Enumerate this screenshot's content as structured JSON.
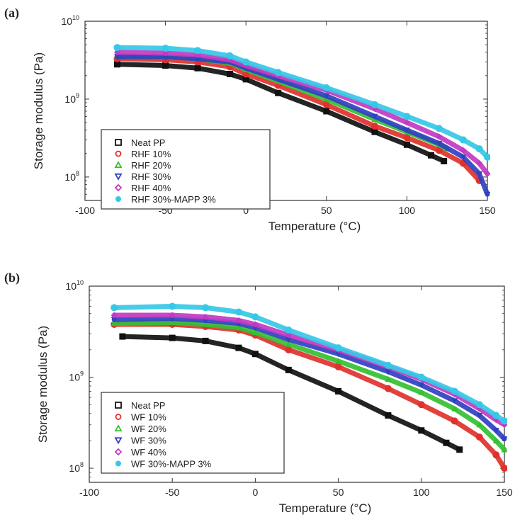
{
  "chart_data": [
    {
      "type": "line",
      "panel_label": "(a)",
      "xlabel": "Temperature (°C)",
      "ylabel": "Storage modulus (Pa)",
      "xlim": [
        -100,
        150
      ],
      "ylim": [
        50000000.0,
        10000000000.0
      ],
      "y_scale": "log",
      "x_ticks": [
        -100,
        -50,
        0,
        50,
        100,
        150
      ],
      "x_tick_labels": [
        "-100",
        "-50",
        "0",
        "50",
        "100",
        "150"
      ],
      "y_ticks": [
        100000000.0,
        1000000000.0,
        10000000000.0
      ],
      "y_tick_labels": [
        {
          "base": "10",
          "exp": "8"
        },
        {
          "base": "10",
          "exp": "9"
        },
        {
          "base": "10",
          "exp": "10"
        }
      ],
      "legend_position": "bottom-left",
      "series": [
        {
          "name": "Neat PP",
          "color": "#111111",
          "marker": "square",
          "points": [
            [
              -80,
              2800000000.0
            ],
            [
              -50,
              2700000000.0
            ],
            [
              -30,
              2500000000.0
            ],
            [
              -10,
              2100000000.0
            ],
            [
              0,
              1800000000.0
            ],
            [
              20,
              1200000000.0
            ],
            [
              50,
              700000000.0
            ],
            [
              80,
              380000000.0
            ],
            [
              100,
              260000000.0
            ],
            [
              115,
              190000000.0
            ],
            [
              123,
              160000000.0
            ]
          ]
        },
        {
          "name": "RHF 10%",
          "color": "#e0322d",
          "marker": "circle",
          "points": [
            [
              -80,
              3300000000.0
            ],
            [
              -50,
              3200000000.0
            ],
            [
              -30,
              3000000000.0
            ],
            [
              -10,
              2600000000.0
            ],
            [
              0,
              2100000000.0
            ],
            [
              20,
              1500000000.0
            ],
            [
              50,
              850000000.0
            ],
            [
              80,
              450000000.0
            ],
            [
              100,
              320000000.0
            ],
            [
              120,
              220000000.0
            ],
            [
              135,
              150000000.0
            ],
            [
              145,
              90000000.0
            ]
          ]
        },
        {
          "name": "RHF 20%",
          "color": "#33c033",
          "marker": "triangle-up",
          "points": [
            [
              -80,
              3600000000.0
            ],
            [
              -50,
              3500000000.0
            ],
            [
              -30,
              3300000000.0
            ],
            [
              -10,
              2900000000.0
            ],
            [
              0,
              2400000000.0
            ],
            [
              20,
              1700000000.0
            ],
            [
              50,
              1000000000.0
            ],
            [
              80,
              550000000.0
            ],
            [
              100,
              380000000.0
            ],
            [
              120,
              260000000.0
            ],
            [
              125,
              230000000.0
            ]
          ]
        },
        {
          "name": "RHF 30%",
          "color": "#3040c0",
          "marker": "triangle-down",
          "points": [
            [
              -80,
              3500000000.0
            ],
            [
              -50,
              3500000000.0
            ],
            [
              -30,
              3300000000.0
            ],
            [
              -10,
              3000000000.0
            ],
            [
              0,
              2500000000.0
            ],
            [
              20,
              1800000000.0
            ],
            [
              50,
              1100000000.0
            ],
            [
              80,
              600000000.0
            ],
            [
              100,
              400000000.0
            ],
            [
              120,
              270000000.0
            ],
            [
              135,
              180000000.0
            ],
            [
              145,
              110000000.0
            ],
            [
              150,
              60000000.0
            ]
          ]
        },
        {
          "name": "RHF 40%",
          "color": "#c23ac2",
          "marker": "diamond",
          "points": [
            [
              -80,
              4000000000.0
            ],
            [
              -50,
              3900000000.0
            ],
            [
              -30,
              3700000000.0
            ],
            [
              -10,
              3200000000.0
            ],
            [
              0,
              2700000000.0
            ],
            [
              20,
              2000000000.0
            ],
            [
              50,
              1300000000.0
            ],
            [
              80,
              750000000.0
            ],
            [
              100,
              500000000.0
            ],
            [
              120,
              330000000.0
            ],
            [
              135,
              220000000.0
            ],
            [
              145,
              150000000.0
            ],
            [
              150,
              110000000.0
            ]
          ]
        },
        {
          "name": "RHF 30%-MAPP 3%",
          "color": "#36c8e6",
          "marker": "star",
          "points": [
            [
              -80,
              4600000000.0
            ],
            [
              -50,
              4500000000.0
            ],
            [
              -30,
              4200000000.0
            ],
            [
              -10,
              3600000000.0
            ],
            [
              0,
              3000000000.0
            ],
            [
              20,
              2200000000.0
            ],
            [
              50,
              1400000000.0
            ],
            [
              80,
              850000000.0
            ],
            [
              100,
              600000000.0
            ],
            [
              120,
              420000000.0
            ],
            [
              135,
              300000000.0
            ],
            [
              145,
              230000000.0
            ],
            [
              150,
              180000000.0
            ]
          ]
        }
      ]
    },
    {
      "type": "line",
      "panel_label": "(b)",
      "xlabel": "Temperature (°C)",
      "ylabel": "Storage modulus (Pa)",
      "xlim": [
        -100,
        150
      ],
      "ylim": [
        70000000.0,
        10000000000.0
      ],
      "y_scale": "log",
      "x_ticks": [
        -100,
        -50,
        0,
        50,
        100,
        150
      ],
      "x_tick_labels": [
        "-100",
        "-50",
        "0",
        "50",
        "100",
        "150"
      ],
      "y_ticks": [
        100000000.0,
        1000000000.0,
        10000000000.0
      ],
      "y_tick_labels": [
        {
          "base": "10",
          "exp": "8"
        },
        {
          "base": "10",
          "exp": "9"
        },
        {
          "base": "10",
          "exp": "10"
        }
      ],
      "legend_position": "bottom-left",
      "series": [
        {
          "name": "Neat PP",
          "color": "#111111",
          "marker": "square",
          "points": [
            [
              -80,
              2800000000.0
            ],
            [
              -50,
              2700000000.0
            ],
            [
              -30,
              2500000000.0
            ],
            [
              -10,
              2100000000.0
            ],
            [
              0,
              1800000000.0
            ],
            [
              20,
              1200000000.0
            ],
            [
              50,
              700000000.0
            ],
            [
              80,
              380000000.0
            ],
            [
              100,
              260000000.0
            ],
            [
              115,
              190000000.0
            ],
            [
              123,
              160000000.0
            ]
          ]
        },
        {
          "name": "WF 10%",
          "color": "#e0322d",
          "marker": "circle",
          "points": [
            [
              -85,
              3800000000.0
            ],
            [
              -50,
              3800000000.0
            ],
            [
              -30,
              3600000000.0
            ],
            [
              -10,
              3300000000.0
            ],
            [
              0,
              2900000000.0
            ],
            [
              20,
              2000000000.0
            ],
            [
              50,
              1300000000.0
            ],
            [
              80,
              750000000.0
            ],
            [
              100,
              500000000.0
            ],
            [
              120,
              330000000.0
            ],
            [
              135,
              220000000.0
            ],
            [
              145,
              140000000.0
            ],
            [
              150,
              100000000.0
            ]
          ]
        },
        {
          "name": "WF 20%",
          "color": "#33c033",
          "marker": "triangle-up",
          "points": [
            [
              -85,
              3900000000.0
            ],
            [
              -50,
              4000000000.0
            ],
            [
              -30,
              3800000000.0
            ],
            [
              -10,
              3500000000.0
            ],
            [
              0,
              3100000000.0
            ],
            [
              20,
              2300000000.0
            ],
            [
              50,
              1500000000.0
            ],
            [
              80,
              950000000.0
            ],
            [
              100,
              680000000.0
            ],
            [
              120,
              450000000.0
            ],
            [
              135,
              300000000.0
            ],
            [
              145,
              200000000.0
            ],
            [
              150,
              160000000.0
            ]
          ]
        },
        {
          "name": "WF 30%",
          "color": "#3040c0",
          "marker": "triangle-down",
          "points": [
            [
              -85,
              4300000000.0
            ],
            [
              -50,
              4400000000.0
            ],
            [
              -30,
              4200000000.0
            ],
            [
              -10,
              3900000000.0
            ],
            [
              0,
              3500000000.0
            ],
            [
              20,
              2600000000.0
            ],
            [
              50,
              1800000000.0
            ],
            [
              80,
              1150000000.0
            ],
            [
              100,
              820000000.0
            ],
            [
              120,
              550000000.0
            ],
            [
              135,
              380000000.0
            ],
            [
              145,
              260000000.0
            ],
            [
              150,
              210000000.0
            ]
          ]
        },
        {
          "name": "WF 40%",
          "color": "#c23ac2",
          "marker": "diamond",
          "points": [
            [
              -85,
              4800000000.0
            ],
            [
              -50,
              4800000000.0
            ],
            [
              -30,
              4600000000.0
            ],
            [
              -10,
              4200000000.0
            ],
            [
              0,
              3800000000.0
            ],
            [
              20,
              2900000000.0
            ],
            [
              50,
              2000000000.0
            ],
            [
              80,
              1300000000.0
            ],
            [
              100,
              950000000.0
            ],
            [
              120,
              650000000.0
            ],
            [
              135,
              450000000.0
            ],
            [
              145,
              340000000.0
            ],
            [
              150,
              300000000.0
            ]
          ]
        },
        {
          "name": "WF 30%-MAPP 3%",
          "color": "#36c8e6",
          "marker": "star",
          "points": [
            [
              -85,
              5800000000.0
            ],
            [
              -50,
              6000000000.0
            ],
            [
              -30,
              5800000000.0
            ],
            [
              -10,
              5200000000.0
            ],
            [
              0,
              4600000000.0
            ],
            [
              20,
              3300000000.0
            ],
            [
              50,
              2100000000.0
            ],
            [
              80,
              1350000000.0
            ],
            [
              100,
              1000000000.0
            ],
            [
              120,
              700000000.0
            ],
            [
              135,
              500000000.0
            ],
            [
              145,
              380000000.0
            ],
            [
              150,
              330000000.0
            ]
          ]
        }
      ]
    }
  ]
}
